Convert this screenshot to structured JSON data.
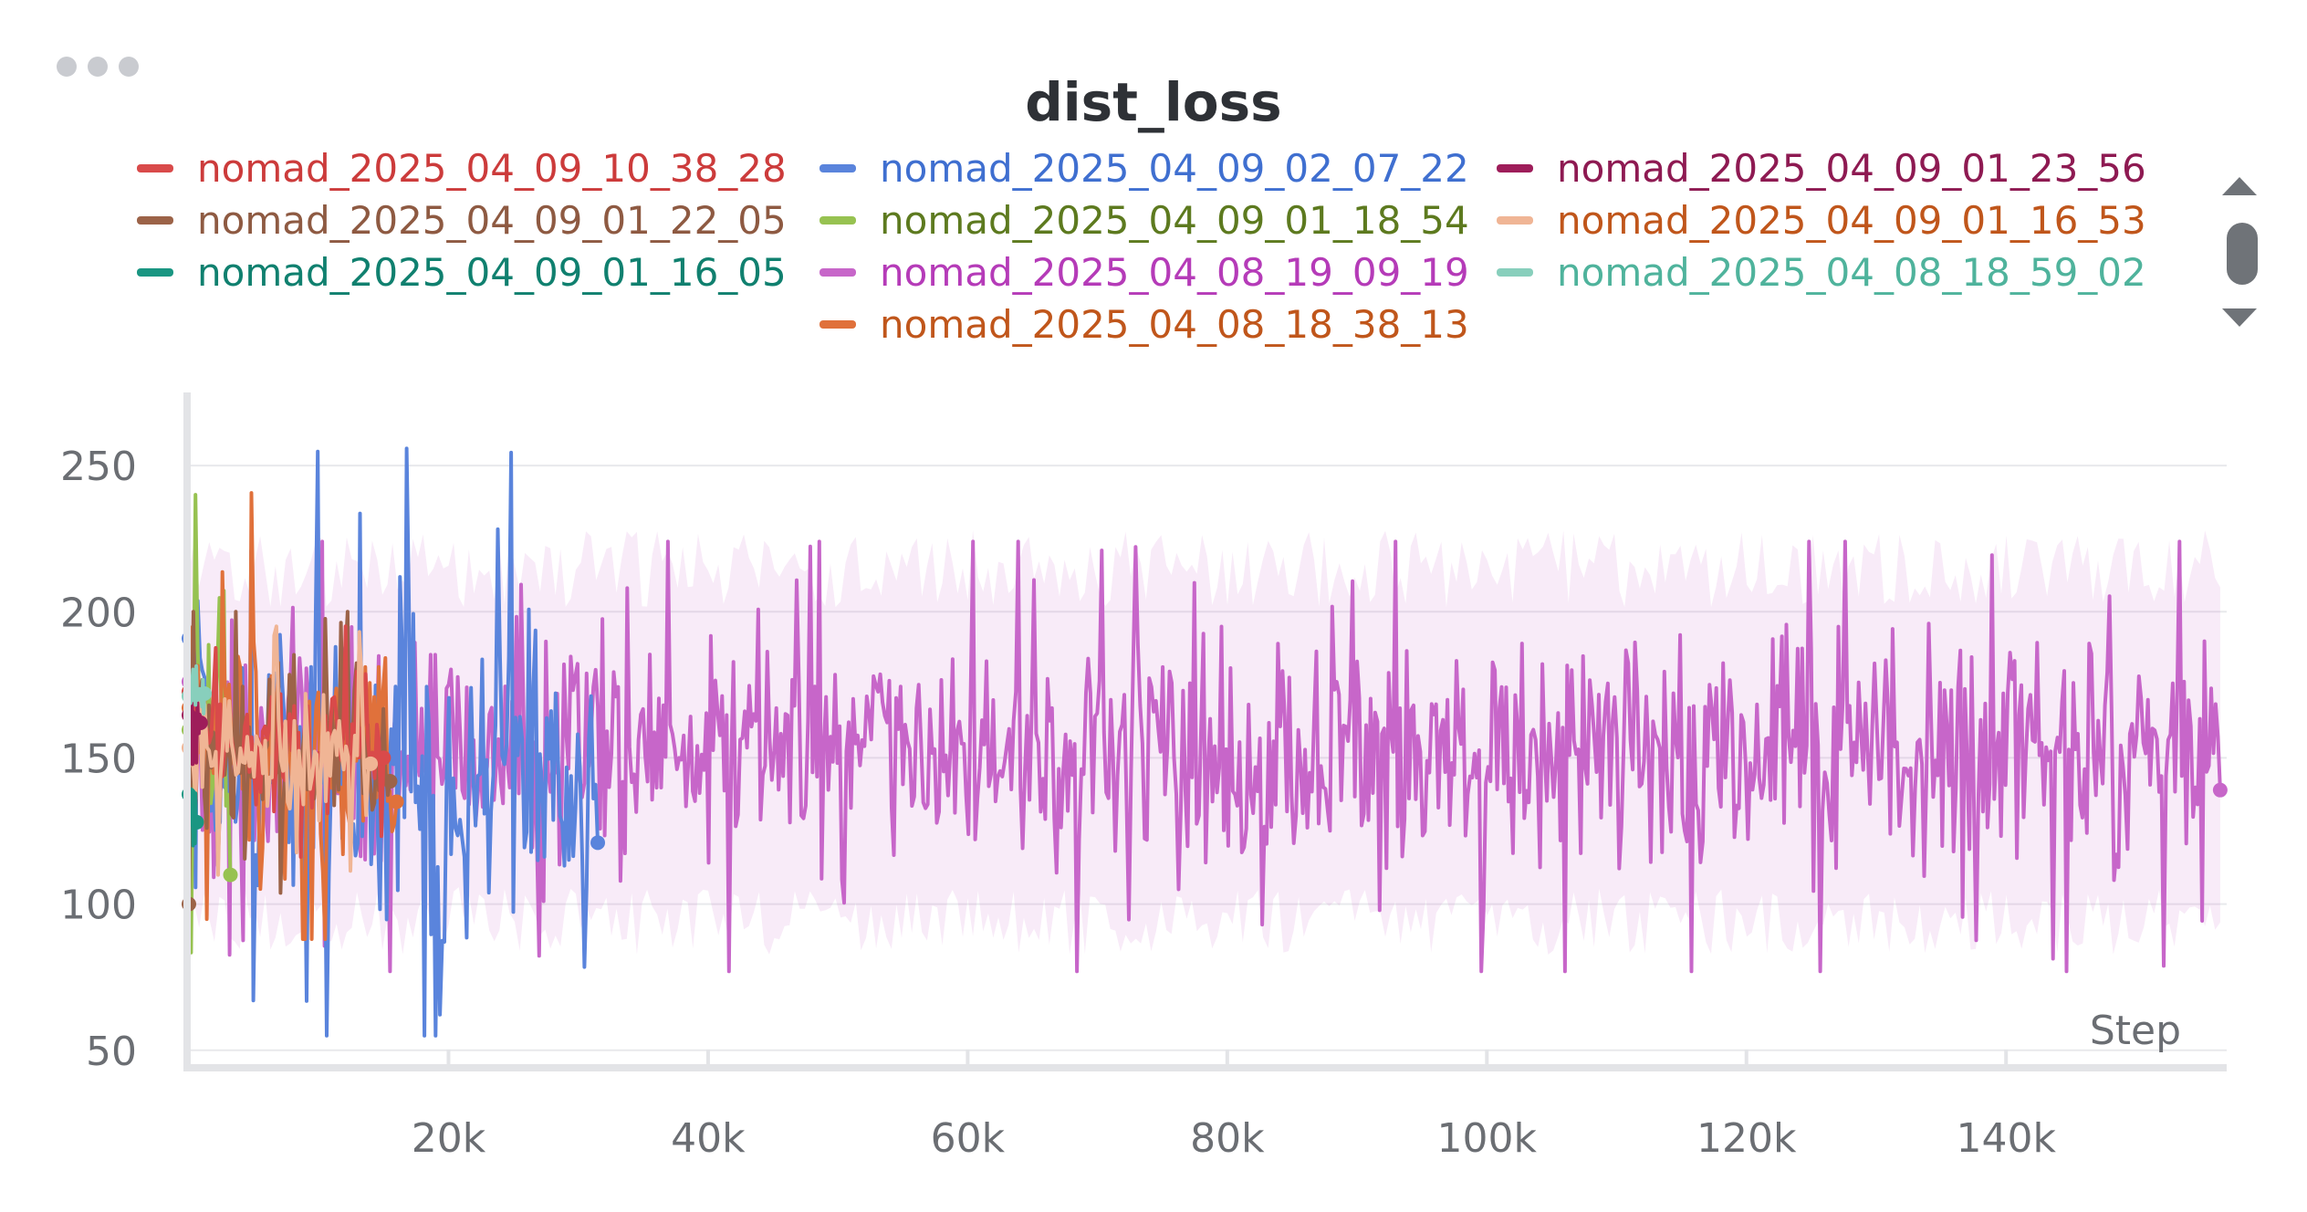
{
  "panel": {
    "menu_icon": "more-horizontal-icon"
  },
  "legend": {
    "items": [
      {
        "label": "nomad_2025_04_09_10_38_28",
        "color": "#d94a4a"
      },
      {
        "label": "nomad_2025_04_09_02_07_22",
        "color": "#5a84dc"
      },
      {
        "label": "nomad_2025_04_09_01_23_56",
        "color": "#9e1d5a"
      },
      {
        "label": "nomad_2025_04_09_01_22_05",
        "color": "#9c6348"
      },
      {
        "label": "nomad_2025_04_09_01_18_54",
        "color": "#97c251"
      },
      {
        "label": "nomad_2025_04_09_01_16_53",
        "color": "#f0b595"
      },
      {
        "label": "nomad_2025_04_09_01_16_05",
        "color": "#1a9682"
      },
      {
        "label": "nomad_2025_04_08_19_09_19",
        "color": "#c766c9"
      },
      {
        "label": "nomad_2025_04_08_18_59_02",
        "color": "#88cfbc"
      },
      {
        "label": "nomad_2025_04_08_18_38_13",
        "color": "#e0713b"
      }
    ],
    "text_colors": {
      "nomad_2025_04_09_10_38_28": "#cc3b3b",
      "nomad_2025_04_09_02_07_22": "#3f6fd0",
      "nomad_2025_04_09_01_23_56": "#8e1a52",
      "nomad_2025_04_09_01_22_05": "#8e5a42",
      "nomad_2025_04_09_01_18_54": "#5d7a1f",
      "nomad_2025_04_09_01_16_53": "#c0561b",
      "nomad_2025_04_09_01_16_05": "#10806f",
      "nomad_2025_04_08_19_09_19": "#b53bb8",
      "nomad_2025_04_08_18_59_02": "#4fb39c",
      "nomad_2025_04_08_18_38_13": "#c0561b"
    }
  },
  "chart_data": {
    "type": "line",
    "title": "dist_loss",
    "xlabel": "Step",
    "ylabel": "",
    "xlim": [
      0,
      157000
    ],
    "ylim": [
      44,
      275
    ],
    "x_ticks": [
      20000,
      40000,
      60000,
      80000,
      100000,
      120000,
      140000
    ],
    "x_tick_labels": [
      "20k",
      "40k",
      "60k",
      "80k",
      "100k",
      "120k",
      "140k"
    ],
    "y_ticks": [
      50,
      100,
      150,
      200,
      250
    ],
    "y_tick_labels": [
      "50",
      "100",
      "150",
      "200",
      "250"
    ],
    "grid": true,
    "legend_position": "top",
    "series": [
      {
        "name": "nomad_2025_04_08_19_09_19",
        "color": "#c766c9",
        "x_range": [
          0,
          156500
        ],
        "mean": 152,
        "spread": 33,
        "min": 77,
        "max": 224,
        "last": 139,
        "band": true
      },
      {
        "name": "nomad_2025_04_09_02_07_22",
        "color": "#5a84dc",
        "x_range": [
          0,
          31500
        ],
        "mean": 145,
        "spread": 45,
        "min": 55,
        "max": 257,
        "last": 121
      },
      {
        "name": "nomad_2025_04_09_01_18_54",
        "color": "#97c251",
        "x_range": [
          0,
          3200
        ],
        "mean": 150,
        "spread": 60,
        "min": 46,
        "max": 240,
        "last": 110
      },
      {
        "name": "nomad_2025_04_08_18_38_13",
        "color": "#e0713b",
        "x_range": [
          0,
          16000
        ],
        "mean": 150,
        "spread": 38,
        "min": 88,
        "max": 249,
        "last": 135
      },
      {
        "name": "nomad_2025_04_09_01_22_05",
        "color": "#9c6348",
        "x_range": [
          0,
          15500
        ],
        "mean": 150,
        "spread": 25,
        "min": 100,
        "max": 200,
        "last": 142
      },
      {
        "name": "nomad_2025_04_09_10_38_28",
        "color": "#d94a4a",
        "x_range": [
          0,
          15000
        ],
        "mean": 152,
        "spread": 20,
        "min": 110,
        "max": 195,
        "last": 150
      },
      {
        "name": "nomad_2025_04_09_01_16_53",
        "color": "#f0b595",
        "x_range": [
          0,
          14000
        ],
        "mean": 150,
        "spread": 20,
        "min": 110,
        "max": 195,
        "last": 148
      },
      {
        "name": "nomad_2025_04_09_01_23_56",
        "color": "#9e1d5a",
        "x_range": [
          0,
          900
        ],
        "mean": 160,
        "spread": 10,
        "min": 140,
        "max": 175,
        "last": 162
      },
      {
        "name": "nomad_2025_04_09_01_16_05",
        "color": "#1a9682",
        "x_range": [
          0,
          600
        ],
        "mean": 130,
        "spread": 10,
        "min": 115,
        "max": 145,
        "last": 128
      },
      {
        "name": "nomad_2025_04_08_18_59_02",
        "color": "#88cfbc",
        "x_range": [
          0,
          1200
        ],
        "mean": 172,
        "spread": 8,
        "min": 160,
        "max": 185,
        "last": 172
      }
    ]
  }
}
